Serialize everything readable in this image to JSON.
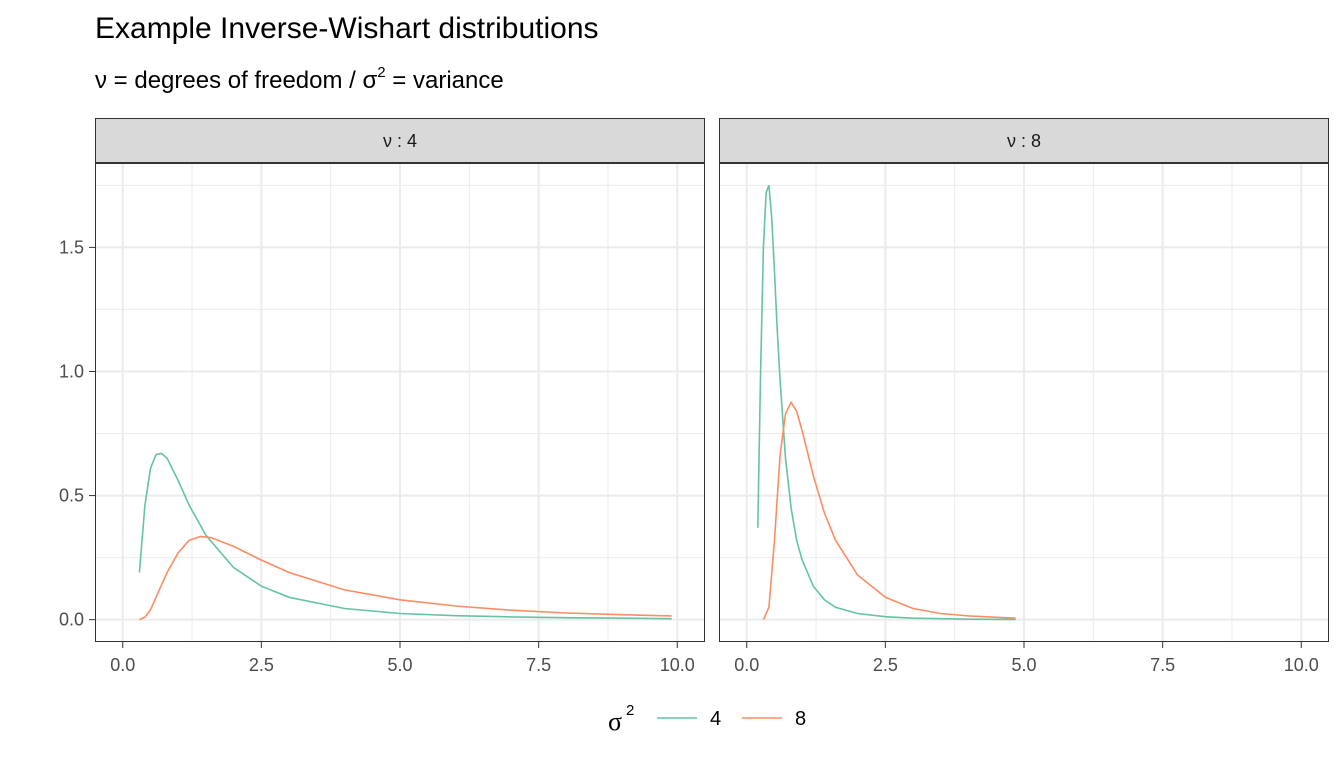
{
  "title": "Example Inverse-Wishart distributions",
  "subtitle": {
    "nu_symbol": "ν",
    "part1": " = degrees of freedom / ",
    "sigma_symbol": "σ",
    "sup": "2",
    "part2": " = variance"
  },
  "legend": {
    "title_symbol": "σ",
    "title_sup": "2",
    "position": "bottom"
  },
  "colors": {
    "series_4": "#66c2a5",
    "series_8": "#fc8d62",
    "strip_fill": "#d9d9d9",
    "grid": "#ebebeb"
  },
  "chart_data": {
    "type": "line",
    "xlim": [
      -0.5,
      10.5
    ],
    "ylim": [
      -0.09,
      1.84
    ],
    "x_ticks": [
      0,
      2.5,
      5,
      7.5,
      10
    ],
    "x_tick_labels": [
      "0.0",
      "2.5",
      "5.0",
      "7.5",
      "10.0"
    ],
    "y_ticks": [
      0,
      0.5,
      1,
      1.5
    ],
    "y_tick_labels": [
      "0.0",
      "0.5",
      "1.0",
      "1.5"
    ],
    "grid": true,
    "panels": [
      {
        "strip_label": "ν : 4",
        "series": [
          {
            "name": "4",
            "x": [
              0.3,
              0.4,
              0.5,
              0.6,
              0.7,
              0.8,
              1.0,
              1.2,
              1.5,
              2.0,
              2.5,
              3.0,
              4.0,
              5.0,
              6.0,
              7.0,
              8.0,
              9.0,
              9.9
            ],
            "y": [
              0.19,
              0.46,
              0.61,
              0.665,
              0.67,
              0.65,
              0.56,
              0.46,
              0.34,
              0.21,
              0.135,
              0.09,
              0.045,
              0.025,
              0.016,
              0.011,
              0.008,
              0.006,
              0.004
            ]
          },
          {
            "name": "8",
            "x": [
              0.3,
              0.4,
              0.5,
              0.6,
              0.7,
              0.8,
              1.0,
              1.2,
              1.4,
              1.6,
              2.0,
              2.5,
              3.0,
              4.0,
              5.0,
              6.0,
              7.0,
              8.0,
              9.0,
              9.9
            ],
            "y": [
              0.0,
              0.01,
              0.04,
              0.09,
              0.14,
              0.19,
              0.27,
              0.32,
              0.335,
              0.33,
              0.295,
              0.24,
              0.19,
              0.12,
              0.08,
              0.055,
              0.038,
              0.027,
              0.02,
              0.015
            ]
          }
        ]
      },
      {
        "strip_label": "ν : 8",
        "series": [
          {
            "name": "4",
            "x": [
              0.2,
              0.25,
              0.3,
              0.35,
              0.4,
              0.45,
              0.5,
              0.55,
              0.6,
              0.7,
              0.8,
              0.9,
              1.0,
              1.2,
              1.4,
              1.6,
              2.0,
              2.5,
              3.0,
              4.0,
              4.85
            ],
            "y": [
              0.37,
              1.0,
              1.5,
              1.72,
              1.75,
              1.62,
              1.4,
              1.17,
              0.97,
              0.65,
              0.45,
              0.32,
              0.24,
              0.135,
              0.08,
              0.05,
              0.025,
              0.012,
              0.006,
              0.002,
              0.001
            ]
          },
          {
            "name": "8",
            "x": [
              0.3,
              0.4,
              0.5,
              0.6,
              0.7,
              0.8,
              0.9,
              1.0,
              1.2,
              1.4,
              1.6,
              2.0,
              2.5,
              3.0,
              3.5,
              4.0,
              4.85
            ],
            "y": [
              0.0,
              0.05,
              0.32,
              0.66,
              0.83,
              0.875,
              0.84,
              0.76,
              0.58,
              0.43,
              0.32,
              0.18,
              0.09,
              0.045,
              0.025,
              0.015,
              0.006
            ]
          }
        ]
      }
    ]
  }
}
